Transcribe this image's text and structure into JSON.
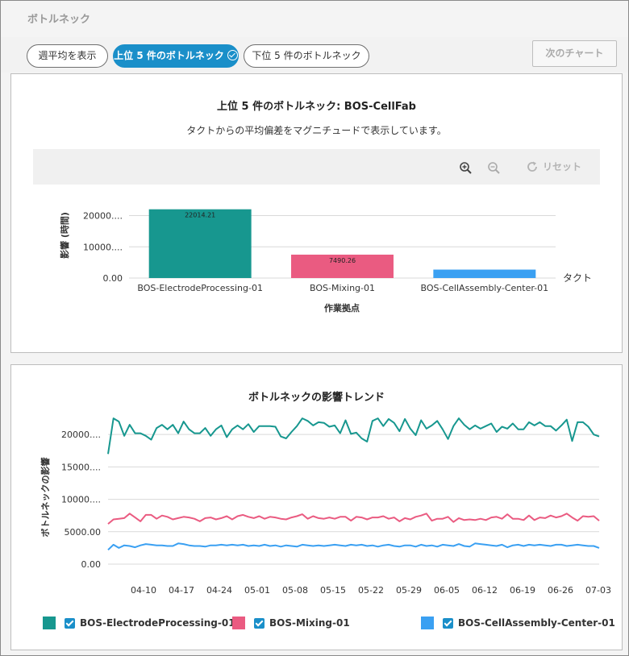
{
  "header": {
    "title": "ボトルネック"
  },
  "toolbar": {
    "weekly_avg_label": "週平均を表示",
    "top5_label": "上位 5 件のボトルネック",
    "bottom5_label": "下位 5 件のボトルネック",
    "next_chart_label": "次のチャート"
  },
  "zoom": {
    "reset_label": "リセット"
  },
  "colors": {
    "teal": "#17978f",
    "pink": "#ea5b81",
    "blue": "#3aa0f2",
    "accent": "#1a8fc9"
  },
  "chart_data": [
    {
      "type": "bar",
      "title": "上位 5 件のボトルネック: BOS-CellFab",
      "subtitle": "タクトからの平均偏差をマグニチュードで表示しています。",
      "xlabel": "作業拠点",
      "ylabel": "影響 (時間)",
      "categories": [
        "BOS-ElectrodeProcessing-01",
        "BOS-Mixing-01",
        "BOS-CellAssembly-Center-01"
      ],
      "values": [
        22014.21,
        7490.26,
        2700
      ],
      "data_labels": [
        "22014.21",
        "7490.26",
        ""
      ],
      "colors": [
        "#17978f",
        "#ea5b81",
        "#3aa0f2"
      ],
      "yticks": [
        "0.00",
        "10000....",
        "20000...."
      ],
      "ylim": [
        0,
        24000
      ],
      "reference_line_label": "タクト"
    },
    {
      "type": "line",
      "title": "ボトルネックの影響トレンド",
      "ylabel": "ボトルネックの影響",
      "xlabel": "",
      "ylim": [
        0,
        24000
      ],
      "yticks": [
        "0.00",
        "5000.00",
        "10000....",
        "15000....",
        "20000...."
      ],
      "xticks": [
        "04-10",
        "04-17",
        "04-24",
        "05-01",
        "05-08",
        "05-15",
        "05-22",
        "05-29",
        "06-05",
        "06-12",
        "06-19",
        "06-26",
        "07-03"
      ],
      "series": [
        {
          "name": "BOS-ElectrodeProcessing-01",
          "color": "#17978f",
          "values": [
            17000,
            22500,
            22000,
            19800,
            21500,
            20200,
            20200,
            19800,
            19200,
            21000,
            21500,
            20800,
            21500,
            20200,
            22000,
            20800,
            20200,
            20200,
            21000,
            19800,
            20800,
            21400,
            19600,
            20800,
            21400,
            20800,
            21600,
            20400,
            21300,
            21300,
            21300,
            21200,
            19700,
            19400,
            20400,
            21300,
            22500,
            22100,
            21400,
            21900,
            21800,
            21200,
            21400,
            20200,
            22200,
            20100,
            20300,
            19400,
            18900,
            22100,
            22500,
            21300,
            22400,
            21800,
            20500,
            22400,
            20900,
            19900,
            22200,
            20900,
            21400,
            22100,
            20800,
            19300,
            21300,
            22500,
            21500,
            20800,
            21400,
            20900,
            21300,
            21700,
            20400,
            21200,
            20900,
            21700,
            20800,
            20800,
            21900,
            21400,
            21900,
            21300,
            21300,
            20600,
            21400,
            22300,
            19000,
            21900,
            21900,
            21200,
            20000,
            19700
          ]
        },
        {
          "name": "BOS-Mixing-01",
          "color": "#ea5b81",
          "values": [
            6200,
            6900,
            7000,
            7100,
            7800,
            7200,
            6600,
            7600,
            7600,
            7000,
            7500,
            7300,
            6900,
            7100,
            7300,
            7200,
            7000,
            6600,
            7100,
            7200,
            6900,
            7100,
            7400,
            6900,
            7400,
            7600,
            7300,
            7100,
            7400,
            7000,
            7300,
            7200,
            7000,
            6900,
            7200,
            7400,
            7700,
            7000,
            7400,
            7100,
            7000,
            7200,
            7000,
            7300,
            7300,
            6700,
            7300,
            7200,
            6900,
            7200,
            7200,
            7400,
            7000,
            7200,
            6600,
            7100,
            6900,
            7300,
            7500,
            7800,
            6700,
            7000,
            7000,
            7300,
            6500,
            7100,
            6800,
            6900,
            6800,
            7000,
            6800,
            7200,
            7300,
            7000,
            7700,
            7000,
            7000,
            6800,
            7500,
            6800,
            7200,
            7100,
            7500,
            7200,
            7400,
            7800,
            7200,
            6700,
            7400,
            7300,
            7400,
            6700
          ]
        },
        {
          "name": "BOS-CellAssembly-Center-01",
          "color": "#3aa0f2",
          "values": [
            2200,
            3000,
            2500,
            2900,
            2800,
            2600,
            2900,
            3100,
            3000,
            2900,
            2900,
            2800,
            2800,
            3200,
            3100,
            2900,
            2800,
            2800,
            2700,
            2900,
            2900,
            3000,
            2900,
            3000,
            2900,
            3000,
            2800,
            2900,
            2800,
            3000,
            2800,
            2900,
            2700,
            2900,
            2800,
            2700,
            3000,
            2900,
            2800,
            2900,
            2800,
            2900,
            3000,
            2900,
            2800,
            3000,
            2900,
            3000,
            2800,
            2900,
            2700,
            2900,
            3000,
            2800,
            2700,
            2900,
            2900,
            2700,
            3000,
            2800,
            2900,
            2700,
            3000,
            2900,
            2800,
            3100,
            2800,
            2700,
            3200,
            3100,
            3000,
            2900,
            2800,
            3000,
            2600,
            2900,
            3000,
            2800,
            3000,
            2900,
            3000,
            2900,
            2800,
            3000,
            3000,
            2800,
            2900,
            3000,
            2900,
            2800,
            2800,
            2500
          ]
        }
      ]
    }
  ]
}
